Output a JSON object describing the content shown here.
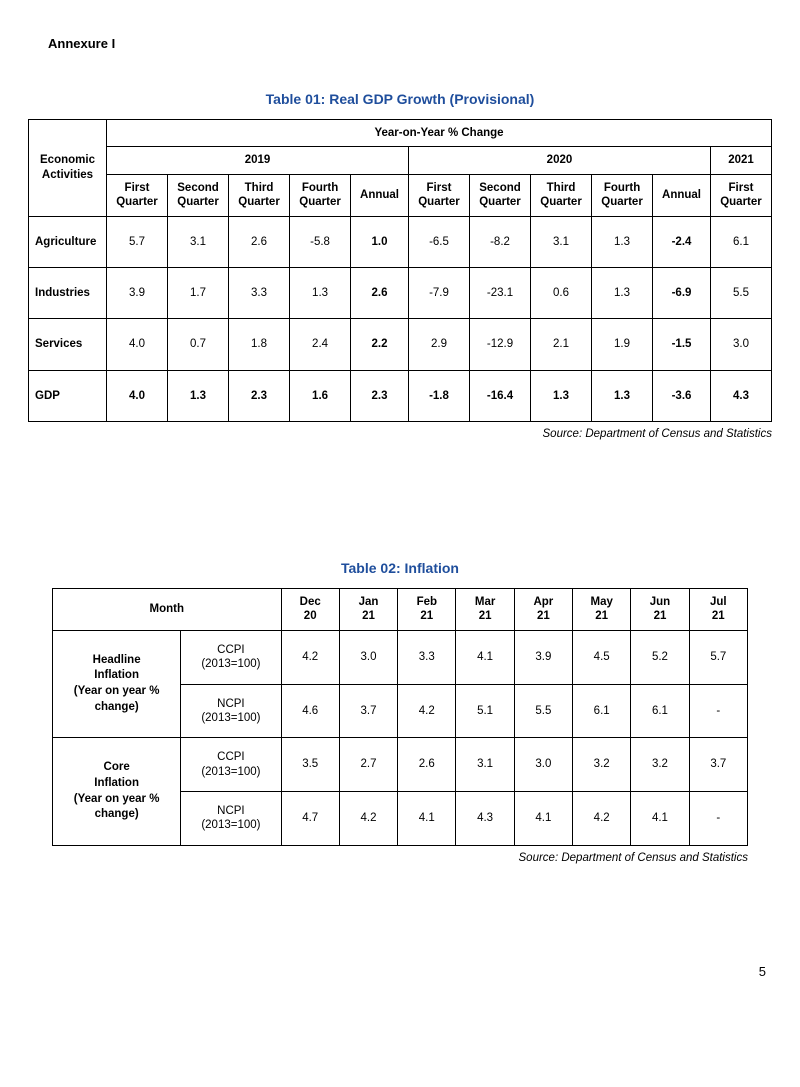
{
  "annexure": "Annexure I",
  "table1": {
    "title": "Table 01: Real GDP Growth (Provisional)",
    "rowHeader": "Economic Activities",
    "spanHeader": "Year-on-Year % Change",
    "yearHeaders": [
      "2019",
      "2020",
      "2021"
    ],
    "subHeaders": [
      "First Quarter",
      "Second Quarter",
      "Third Quarter",
      "Fourth Quarter",
      "Annual",
      "First Quarter",
      "Second Quarter",
      "Third Quarter",
      "Fourth Quarter",
      "Annual",
      "First Quarter"
    ],
    "rows": [
      {
        "label": "Agriculture",
        "vals": [
          "5.7",
          "3.1",
          "2.6",
          "-5.8",
          "1.0",
          "-6.5",
          "-8.2",
          "3.1",
          "1.3",
          "-2.4",
          "6.1"
        ]
      },
      {
        "label": "Industries",
        "vals": [
          "3.9",
          "1.7",
          "3.3",
          "1.3",
          "2.6",
          "-7.9",
          "-23.1",
          "0.6",
          "1.3",
          "-6.9",
          "5.5"
        ]
      },
      {
        "label": "Services",
        "vals": [
          "4.0",
          "0.7",
          "1.8",
          "2.4",
          "2.2",
          "2.9",
          "-12.9",
          "2.1",
          "1.9",
          "-1.5",
          "3.0"
        ]
      },
      {
        "label": "GDP",
        "vals": [
          "4.0",
          "1.3",
          "2.3",
          "1.6",
          "2.3",
          "-1.8",
          "-16.4",
          "1.3",
          "1.3",
          "-3.6",
          "4.3"
        ],
        "allBold": true
      }
    ],
    "boldCols": [
      4,
      9
    ],
    "source": "Source: Department of Census and Statistics"
  },
  "table2": {
    "title": "Table 02: Inflation",
    "monthHeader": "Month",
    "months": [
      "Dec 20",
      "Jan 21",
      "Feb 21",
      "Mar 21",
      "Apr 21",
      "May 21",
      "Jun 21",
      "Jul 21"
    ],
    "groups": [
      {
        "label": "Headline Inflation (Year on year % change)",
        "rows": [
          {
            "sub": "CCPI (2013=100)",
            "vals": [
              "4.2",
              "3.0",
              "3.3",
              "4.1",
              "3.9",
              "4.5",
              "5.2",
              "5.7"
            ]
          },
          {
            "sub": "NCPI (2013=100)",
            "vals": [
              "4.6",
              "3.7",
              "4.2",
              "5.1",
              "5.5",
              "6.1",
              "6.1",
              "-"
            ]
          }
        ]
      },
      {
        "label": "Core Inflation (Year on year % change)",
        "rows": [
          {
            "sub": "CCPI (2013=100)",
            "vals": [
              "3.5",
              "2.7",
              "2.6",
              "3.1",
              "3.0",
              "3.2",
              "3.2",
              "3.7"
            ]
          },
          {
            "sub": "NCPI (2013=100)",
            "vals": [
              "4.7",
              "4.2",
              "4.1",
              "4.3",
              "4.1",
              "4.2",
              "4.1",
              "-"
            ]
          }
        ]
      }
    ],
    "source": "Source: Department of Census and Statistics"
  },
  "pageNumber": "5"
}
